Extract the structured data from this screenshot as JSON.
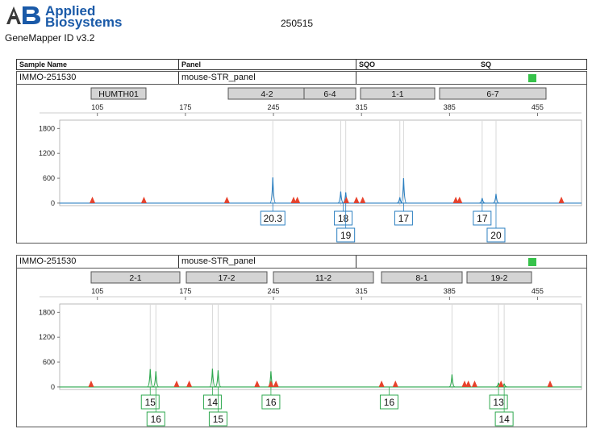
{
  "header": {
    "brand_line1": "Applied",
    "brand_line2": "Biosystems",
    "logo_letters": "AB",
    "app_name": "GeneMapper ID v3.2",
    "run_id": "250515"
  },
  "table_header": {
    "col_sample": "Sample Name",
    "col_panel": "Panel",
    "col_sqo": "SQO",
    "col_sq": "SQ"
  },
  "colors": {
    "blue_dye": "#2b7fc0",
    "green_dye": "#2fa84f",
    "bin_marker": "#e8422c",
    "status_ok": "#36c24a",
    "bin_box_fill": "#d4d4d4"
  },
  "panels": [
    {
      "sample": "IMMO-251530",
      "panel": "mouse-STR_panel",
      "status_icon": "green-square-icon",
      "marker_labels": [
        "HUMTH01",
        "4-2",
        "6-4",
        "1-1",
        "6-7"
      ],
      "chart_data": {
        "type": "line",
        "dye": "blue",
        "xlim": [
          75,
          490
        ],
        "ylim": [
          -60,
          2000
        ],
        "xticks": [
          105,
          175,
          245,
          315,
          385,
          455
        ],
        "yticks": [
          0,
          600,
          1200,
          1800
        ],
        "peaks": [
          {
            "x": 244.5,
            "y": 620
          },
          {
            "x": 298.5,
            "y": 280
          },
          {
            "x": 302.5,
            "y": 260
          },
          {
            "x": 345.5,
            "y": 140
          },
          {
            "x": 348.5,
            "y": 600
          },
          {
            "x": 411.0,
            "y": 120
          },
          {
            "x": 422.0,
            "y": 220
          }
        ],
        "bin_markers_x": [
          101,
          142,
          208,
          261,
          264,
          303,
          311,
          316,
          390,
          393,
          474
        ],
        "allele_calls": [
          {
            "x": 244.5,
            "label": "20.3",
            "row": 1
          },
          {
            "x": 300.5,
            "label": "18",
            "row": 1
          },
          {
            "x": 302.5,
            "label": "19",
            "row": 2
          },
          {
            "x": 348.5,
            "label": "17",
            "row": 1
          },
          {
            "x": 411.0,
            "label": "17",
            "row": 1
          },
          {
            "x": 422.0,
            "label": "20",
            "row": 2
          }
        ]
      }
    },
    {
      "sample": "IMMO-251530",
      "panel": "mouse-STR_panel",
      "status_icon": "green-square-icon",
      "marker_labels": [
        "2-1",
        "17-2",
        "11-2",
        "8-1",
        "19-2"
      ],
      "chart_data": {
        "type": "line",
        "dye": "green",
        "xlim": [
          75,
          490
        ],
        "ylim": [
          -60,
          2000
        ],
        "xticks": [
          105,
          175,
          245,
          315,
          385,
          455
        ],
        "yticks": [
          0,
          600,
          1200,
          1800
        ],
        "peaks": [
          {
            "x": 147.0,
            "y": 430
          },
          {
            "x": 151.5,
            "y": 380
          },
          {
            "x": 196.5,
            "y": 440
          },
          {
            "x": 201.0,
            "y": 400
          },
          {
            "x": 243.0,
            "y": 380
          },
          {
            "x": 387.0,
            "y": 300
          },
          {
            "x": 424.0,
            "y": 100
          },
          {
            "x": 428.5,
            "y": 80
          }
        ],
        "bin_markers_x": [
          100,
          168,
          178,
          232,
          243,
          247,
          331,
          342,
          397,
          400,
          405,
          426,
          465
        ],
        "allele_calls": [
          {
            "x": 147.0,
            "label": "15",
            "row": 1
          },
          {
            "x": 151.5,
            "label": "16",
            "row": 2
          },
          {
            "x": 196.5,
            "label": "14",
            "row": 1
          },
          {
            "x": 201.0,
            "label": "15",
            "row": 2
          },
          {
            "x": 243.0,
            "label": "16",
            "row": 1
          },
          {
            "x": 337.0,
            "label": "16",
            "row": 1
          },
          {
            "x": 424.0,
            "label": "13",
            "row": 1
          },
          {
            "x": 428.5,
            "label": "14",
            "row": 2
          }
        ]
      }
    }
  ]
}
